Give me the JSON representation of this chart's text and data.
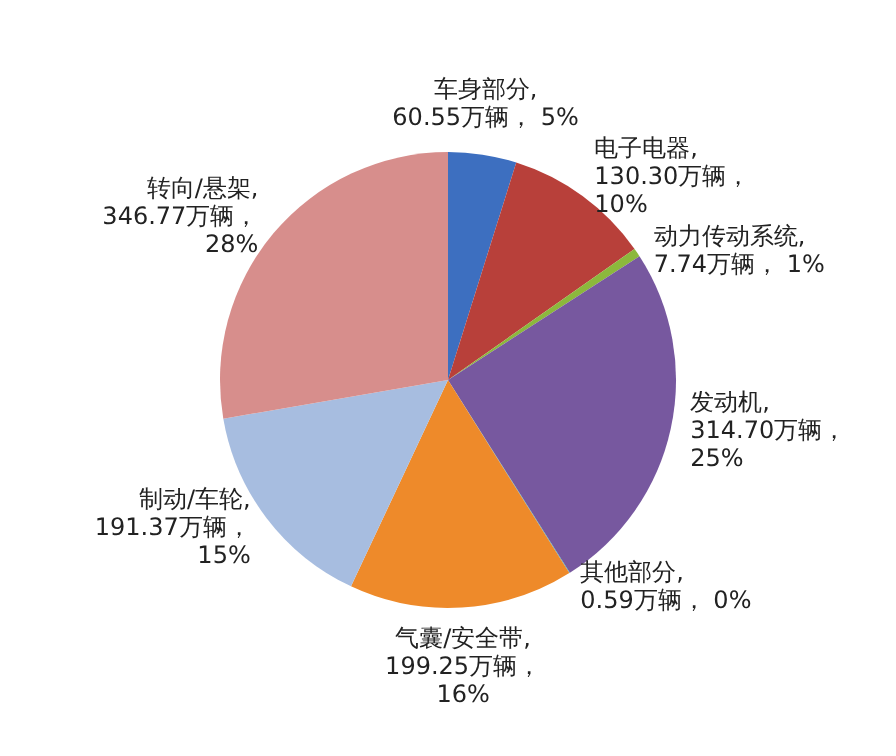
{
  "chart_data": {
    "type": "pie",
    "categories": [
      "车身部分",
      "电子电器",
      "动力传动系统",
      "发动机",
      "其他部分",
      "气囊/安全带",
      "制动/车轮",
      "转向/悬架"
    ],
    "values": [
      60.55,
      130.3,
      7.74,
      314.7,
      0.59,
      199.25,
      191.37,
      346.77
    ],
    "value_labels": [
      ", 60.55万辆， 5%",
      ", 130.30万辆， 10%",
      ", 7.74万辆， 1%",
      ", 314.70万辆， 25%",
      ", 0.59万辆， 0%",
      ", 199.25万辆， 16%",
      ", 191.37万辆， 15%",
      ", 346.77万辆， 28%"
    ],
    "colors": [
      "#3d6fc0",
      "#b8403a",
      "#8cb83c",
      "#77589f",
      "#3aa3bf",
      "#ee8a2a",
      "#a7bde0",
      "#d78e8c"
    ],
    "legend": false
  }
}
